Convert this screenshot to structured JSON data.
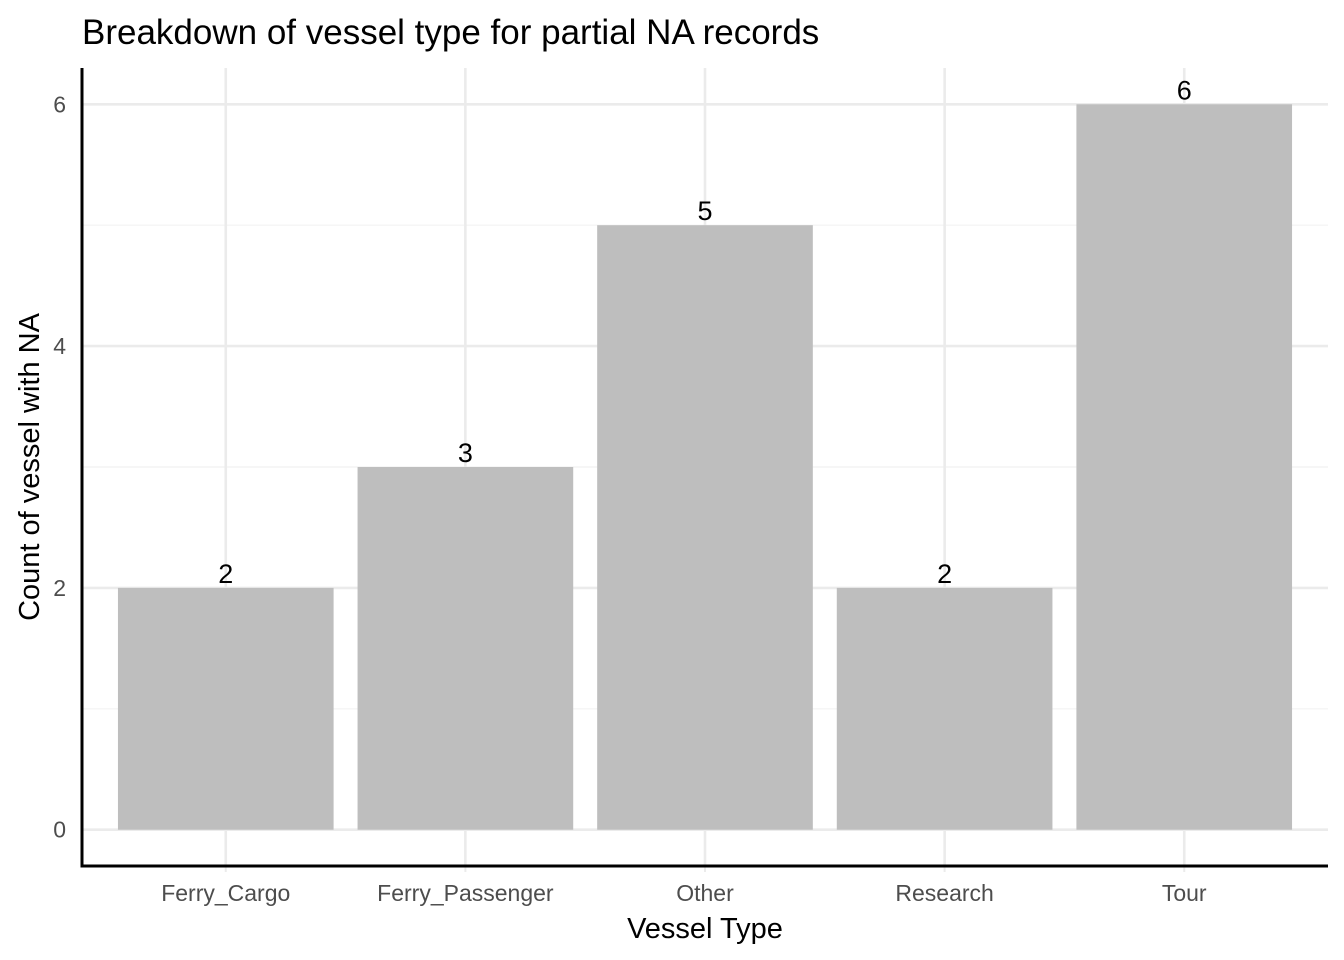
{
  "chart_data": {
    "type": "bar",
    "title": "Breakdown of vessel type for partial NA records",
    "xlabel": "Vessel Type",
    "ylabel": "Count of vessel with NA",
    "categories": [
      "Ferry_Cargo",
      "Ferry_Passenger",
      "Other",
      "Research",
      "Tour"
    ],
    "values": [
      2,
      3,
      5,
      2,
      6
    ],
    "data_labels": [
      "2",
      "3",
      "5",
      "2",
      "6"
    ],
    "ylim": [
      -0.3,
      6.3
    ],
    "y_ticks": [
      0,
      2,
      4,
      6
    ],
    "y_tick_labels": [
      "0",
      "2",
      "4",
      "6"
    ],
    "grid": true,
    "legend": "none",
    "colors": {
      "bar": "#bebebe",
      "grid_major": "#ebebeb",
      "grid_minor": "#f4f4f4",
      "axis": "#000000",
      "tick_text": "#4d4d4d"
    }
  }
}
